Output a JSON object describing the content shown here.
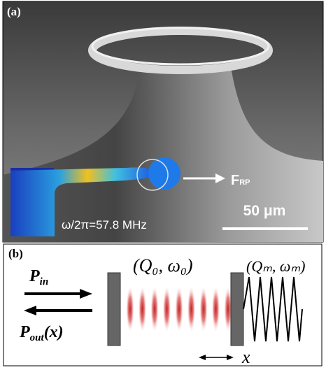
{
  "panel_a": {
    "label": "(a)",
    "force": "F",
    "force_subscript": "RP",
    "frequency": "ω/2π=57.8 MHz",
    "scale_bar": "50 μm"
  },
  "panel_b": {
    "label": "(b)",
    "input_symbol": "P",
    "input_subscript": "in",
    "output_symbol": "P",
    "output_subscript": "out",
    "output_argument": "(x)",
    "optical_mode": "(Q₀, ω₀)",
    "mechanical_mode": "(Qₘ, ωₘ)",
    "displacement": "x"
  }
}
